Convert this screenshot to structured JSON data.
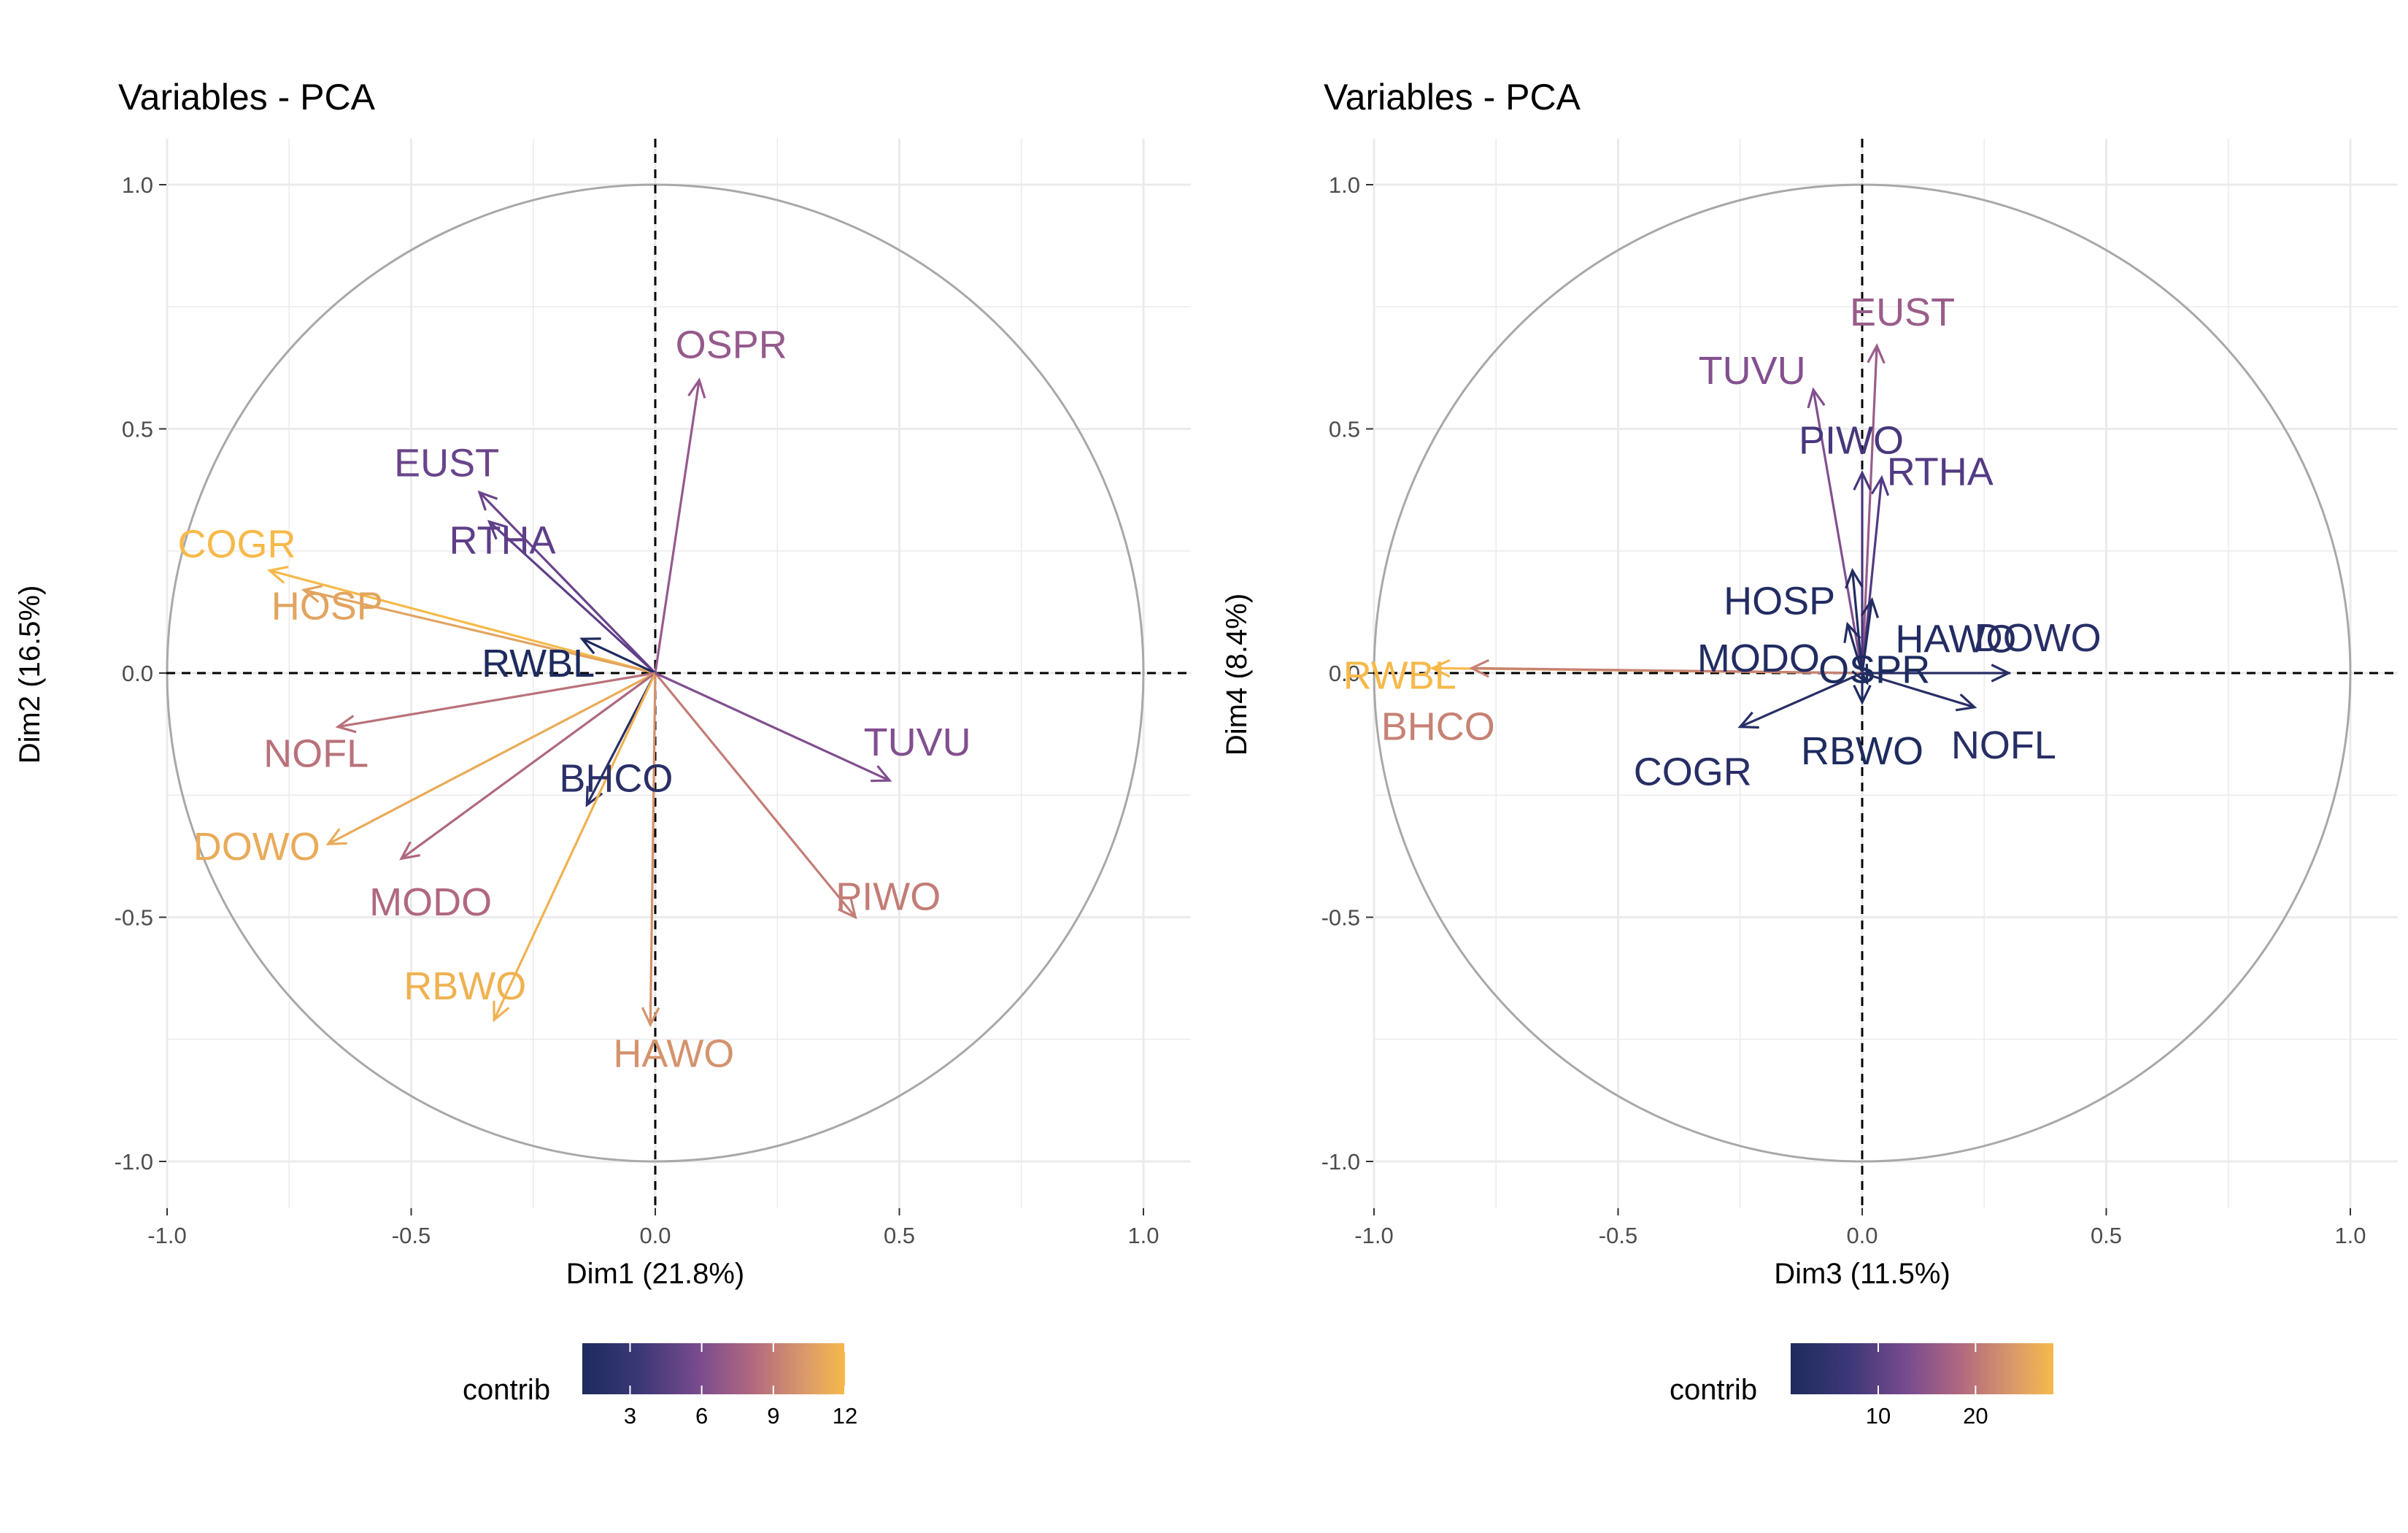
{
  "chart_data": [
    {
      "type": "scatter",
      "subtype": "pca-variable-correlation-circle",
      "title": "Variables - PCA",
      "xlabel": "Dim1 (21.8%)",
      "ylabel": "Dim2 (16.5%)",
      "xlim": [
        -1.0,
        1.0
      ],
      "ylim": [
        -1.0,
        1.0
      ],
      "xticks": [
        "-1.0",
        "-0.5",
        "0.0",
        "0.5",
        "1.0"
      ],
      "yticks": [
        "-1.0",
        "-0.5",
        "0.0",
        "0.5",
        "1.0"
      ],
      "grid": true,
      "legend": {
        "title": "contrib",
        "position": "bottom",
        "type": "colorbar",
        "range": [
          1,
          12
        ],
        "ticks": [
          "3",
          "6",
          "9",
          "12"
        ],
        "tick_values": [
          3,
          6,
          9,
          12
        ]
      },
      "variables": [
        {
          "name": "OSPR",
          "x": 0.09,
          "y": 0.6,
          "contrib": 6.0
        },
        {
          "name": "EUST",
          "x": -0.36,
          "y": 0.37,
          "contrib": 4.0
        },
        {
          "name": "RTHA",
          "x": -0.34,
          "y": 0.31,
          "contrib": 3.5
        },
        {
          "name": "COGR",
          "x": -0.79,
          "y": 0.21,
          "contrib": 12.0
        },
        {
          "name": "HOSP",
          "x": -0.72,
          "y": 0.17,
          "contrib": 10.5
        },
        {
          "name": "RWBL",
          "x": -0.15,
          "y": 0.07,
          "contrib": 1.0
        },
        {
          "name": "NOFL",
          "x": -0.65,
          "y": -0.11,
          "contrib": 8.0
        },
        {
          "name": "DOWO",
          "x": -0.67,
          "y": -0.35,
          "contrib": 11.0
        },
        {
          "name": "MODO",
          "x": -0.52,
          "y": -0.38,
          "contrib": 7.5
        },
        {
          "name": "BHCO",
          "x": -0.14,
          "y": -0.27,
          "contrib": 1.5
        },
        {
          "name": "RBWO",
          "x": -0.33,
          "y": -0.71,
          "contrib": 11.5
        },
        {
          "name": "HAWO",
          "x": -0.01,
          "y": -0.72,
          "contrib": 9.5
        },
        {
          "name": "PIWO",
          "x": 0.41,
          "y": -0.5,
          "contrib": 8.5
        },
        {
          "name": "TUVU",
          "x": 0.48,
          "y": -0.22,
          "contrib": 5.0
        }
      ]
    },
    {
      "type": "scatter",
      "subtype": "pca-variable-correlation-circle",
      "title": "Variables - PCA",
      "xlabel": "Dim3 (11.5%)",
      "ylabel": "Dim4 (8.4%)",
      "xlim": [
        -1.0,
        1.0
      ],
      "ylim": [
        -1.0,
        1.0
      ],
      "xticks": [
        "-1.0",
        "-0.5",
        "0.0",
        "0.5",
        "1.0"
      ],
      "yticks": [
        "-1.0",
        "-0.5",
        "0.0",
        "0.5",
        "1.0"
      ],
      "grid": true,
      "legend": {
        "title": "contrib",
        "position": "bottom",
        "type": "colorbar",
        "range": [
          1,
          28
        ],
        "ticks": [
          "10",
          "20"
        ],
        "tick_values": [
          10,
          20
        ]
      },
      "variables": [
        {
          "name": "EUST",
          "x": 0.03,
          "y": 0.67,
          "contrib": 14.0
        },
        {
          "name": "TUVU",
          "x": -0.1,
          "y": 0.58,
          "contrib": 11.0
        },
        {
          "name": "PIWO",
          "x": 0.0,
          "y": 0.41,
          "contrib": 5.0
        },
        {
          "name": "RTHA",
          "x": 0.04,
          "y": 0.4,
          "contrib": 6.0
        },
        {
          "name": "HOSP",
          "x": -0.02,
          "y": 0.21,
          "contrib": 1.5
        },
        {
          "name": "HAWO",
          "x": 0.02,
          "y": 0.15,
          "contrib": 1.5
        },
        {
          "name": "MODO",
          "x": -0.03,
          "y": 0.1,
          "contrib": 1.5
        },
        {
          "name": "DOWO",
          "x": 0.3,
          "y": 0.0,
          "contrib": 2.0
        },
        {
          "name": "RWBL",
          "x": -0.88,
          "y": 0.01,
          "contrib": 28.0
        },
        {
          "name": "BHCO",
          "x": -0.8,
          "y": 0.01,
          "contrib": 20.0
        },
        {
          "name": "OSPR",
          "x": 0.01,
          "y": -0.02,
          "contrib": 1.0
        },
        {
          "name": "COGR",
          "x": -0.25,
          "y": -0.11,
          "contrib": 2.0
        },
        {
          "name": "RBWO",
          "x": 0.0,
          "y": -0.06,
          "contrib": 1.0
        },
        {
          "name": "NOFL",
          "x": 0.23,
          "y": -0.07,
          "contrib": 2.0
        }
      ]
    }
  ],
  "colors": {
    "scale_low": "#1d2b5e",
    "scale_mid1": "#573b86",
    "scale_mid2": "#8a5491",
    "scale_mid3": "#b2697f",
    "scale_mid4": "#d99a6a",
    "scale_high": "#f6b94a",
    "circle": "#a8a8a8",
    "grid": "#ebebeb",
    "zero_line": "#000000"
  }
}
